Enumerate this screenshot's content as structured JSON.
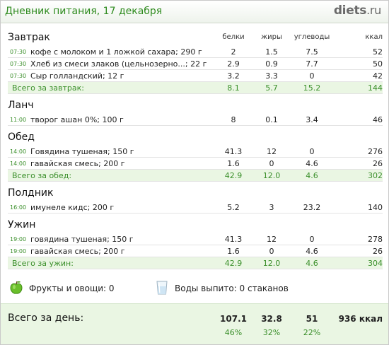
{
  "header": {
    "title": "Дневник питания, 17 декабря",
    "logo_main": "diets",
    "logo_suffix": ".ru"
  },
  "columns": {
    "protein": "белки",
    "fat": "жиры",
    "carbs": "углеводы",
    "kcal": "ккал"
  },
  "meals": [
    {
      "title": "Завтрак",
      "items": [
        {
          "time": "07:30",
          "name": "кофе с молоком и 1 ложкой сахара; 290 г",
          "p": "2",
          "f": "1.5",
          "c": "7.5",
          "k": "52"
        },
        {
          "time": "07:30",
          "name": "Хлеб из смеси злаков (цельнозерно...; 22 г",
          "p": "2.9",
          "f": "0.9",
          "c": "7.7",
          "k": "50"
        },
        {
          "time": "07:30",
          "name": "Сыр голландский; 12 г",
          "p": "3.2",
          "f": "3.3",
          "c": "0",
          "k": "42"
        }
      ],
      "total": {
        "label": "Всего за завтрак:",
        "p": "8.1",
        "f": "5.7",
        "c": "15.2",
        "k": "144"
      }
    },
    {
      "title": "Ланч",
      "items": [
        {
          "time": "11:00",
          "name": "творог ашан 0%; 100 г",
          "p": "8",
          "f": "0.1",
          "c": "3.4",
          "k": "46"
        }
      ]
    },
    {
      "title": "Обед",
      "items": [
        {
          "time": "14:00",
          "name": "Говядина тушеная; 150 г",
          "p": "41.3",
          "f": "12",
          "c": "0",
          "k": "276"
        },
        {
          "time": "14:00",
          "name": "гавайская смесь; 200 г",
          "p": "1.6",
          "f": "0",
          "c": "4.6",
          "k": "26"
        }
      ],
      "total": {
        "label": "Всего за обед:",
        "p": "42.9",
        "f": "12.0",
        "c": "4.6",
        "k": "302"
      }
    },
    {
      "title": "Полдник",
      "items": [
        {
          "time": "16:00",
          "name": "имунеле кидс; 200 г",
          "p": "5.2",
          "f": "3",
          "c": "23.2",
          "k": "140"
        }
      ]
    },
    {
      "title": "Ужин",
      "items": [
        {
          "time": "19:00",
          "name": "говядина тушеная; 150 г",
          "p": "41.3",
          "f": "12",
          "c": "0",
          "k": "278"
        },
        {
          "time": "19:00",
          "name": "гавайская смесь; 200 г",
          "p": "1.6",
          "f": "0",
          "c": "4.6",
          "k": "26"
        }
      ],
      "total": {
        "label": "Всего за ужин:",
        "p": "42.9",
        "f": "12.0",
        "c": "4.6",
        "k": "304"
      }
    }
  ],
  "extras": {
    "fruit_icon": "apple-icon",
    "fruit_label": "Фрукты и овощи: 0",
    "water_icon": "glass-icon",
    "water_label": "Воды выпито: 0 стаканов"
  },
  "day_total": {
    "label": "Всего за день:",
    "p": "107.1",
    "f": "32.8",
    "c": "51",
    "k": "936 ккал",
    "p_pct": "46%",
    "f_pct": "32%",
    "c_pct": "22%"
  },
  "colors": {
    "accent": "#3a8f2a",
    "total_bg": "#eaf6e3"
  }
}
